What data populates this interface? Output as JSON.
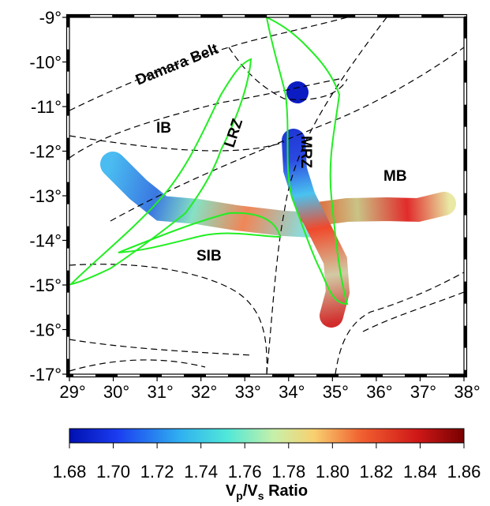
{
  "map": {
    "lon_range": [
      29,
      38
    ],
    "lat_range": [
      -9,
      -17
    ],
    "lon_ticks": [
      {
        "value": 29,
        "label": "29°"
      },
      {
        "value": 30,
        "label": "30°"
      },
      {
        "value": 31,
        "label": "31°"
      },
      {
        "value": 32,
        "label": "32°"
      },
      {
        "value": 33,
        "label": "33°"
      },
      {
        "value": 34,
        "label": "34°"
      },
      {
        "value": 35,
        "label": "35°"
      },
      {
        "value": 36,
        "label": "36°"
      },
      {
        "value": 37,
        "label": "37°"
      },
      {
        "value": 38,
        "label": "38°"
      }
    ],
    "lat_ticks": [
      {
        "value": -9,
        "label": "-9°"
      },
      {
        "value": -10,
        "label": "-10°"
      },
      {
        "value": -11,
        "label": "-11°"
      },
      {
        "value": -12,
        "label": "-12°"
      },
      {
        "value": -13,
        "label": "-13°"
      },
      {
        "value": -14,
        "label": "-14°"
      },
      {
        "value": -15,
        "label": "-15°"
      },
      {
        "value": -16,
        "label": "-16°"
      },
      {
        "value": -17,
        "label": "-17°"
      }
    ],
    "region_labels": [
      "Damara Belt",
      "IB",
      "LRZ",
      "MRZ",
      "MB",
      "SIB"
    ]
  },
  "colorbar": {
    "range": [
      1.68,
      1.86
    ],
    "ticks": [
      {
        "value": 1.68,
        "label": "1.68"
      },
      {
        "value": 1.7,
        "label": "1.70"
      },
      {
        "value": 1.72,
        "label": "1.72"
      },
      {
        "value": 1.74,
        "label": "1.74"
      },
      {
        "value": 1.76,
        "label": "1.76"
      },
      {
        "value": 1.78,
        "label": "1.78"
      },
      {
        "value": 1.8,
        "label": "1.80"
      },
      {
        "value": 1.82,
        "label": "1.82"
      },
      {
        "value": 1.84,
        "label": "1.84"
      },
      {
        "value": 1.86,
        "label": "1.86"
      }
    ],
    "label_parts": [
      "V",
      "p",
      "/V",
      "s",
      " Ratio"
    ]
  }
}
